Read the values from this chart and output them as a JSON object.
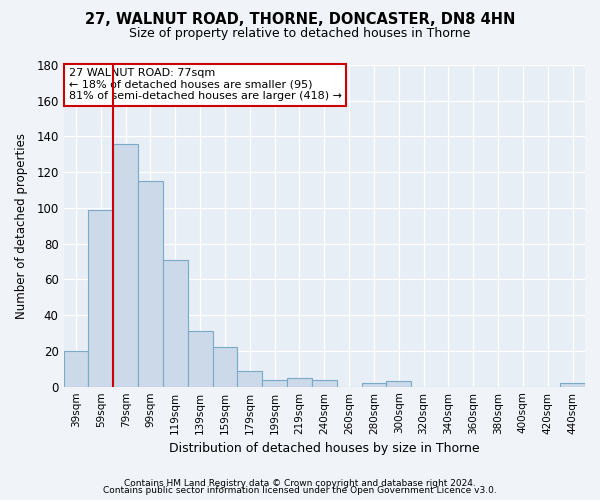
{
  "title": "27, WALNUT ROAD, THORNE, DONCASTER, DN8 4HN",
  "subtitle": "Size of property relative to detached houses in Thorne",
  "xlabel": "Distribution of detached houses by size in Thorne",
  "ylabel": "Number of detached properties",
  "bar_labels": [
    "39sqm",
    "59sqm",
    "79sqm",
    "99sqm",
    "119sqm",
    "139sqm",
    "159sqm",
    "179sqm",
    "199sqm",
    "219sqm",
    "240sqm",
    "260sqm",
    "280sqm",
    "300sqm",
    "320sqm",
    "340sqm",
    "360sqm",
    "380sqm",
    "400sqm",
    "420sqm",
    "440sqm"
  ],
  "bar_values": [
    20,
    99,
    136,
    115,
    71,
    31,
    22,
    9,
    4,
    5,
    4,
    0,
    2,
    3,
    0,
    0,
    0,
    0,
    0,
    0,
    2
  ],
  "bar_color": "#ccd9e8",
  "bar_edge_color": "#7aaac8",
  "vline_color": "#cc0000",
  "ylim": [
    0,
    180
  ],
  "yticks": [
    0,
    20,
    40,
    60,
    80,
    100,
    120,
    140,
    160,
    180
  ],
  "annotation_title": "27 WALNUT ROAD: 77sqm",
  "annotation_line1": "← 18% of detached houses are smaller (95)",
  "annotation_line2": "81% of semi-detached houses are larger (418) →",
  "annotation_box_facecolor": "#ffffff",
  "annotation_box_edge": "#cc0000",
  "plot_bg_color": "#e8eef5",
  "fig_bg_color": "#f0f4f8",
  "grid_color": "#ffffff",
  "footnote1": "Contains HM Land Registry data © Crown copyright and database right 2024.",
  "footnote2": "Contains public sector information licensed under the Open Government Licence v3.0."
}
